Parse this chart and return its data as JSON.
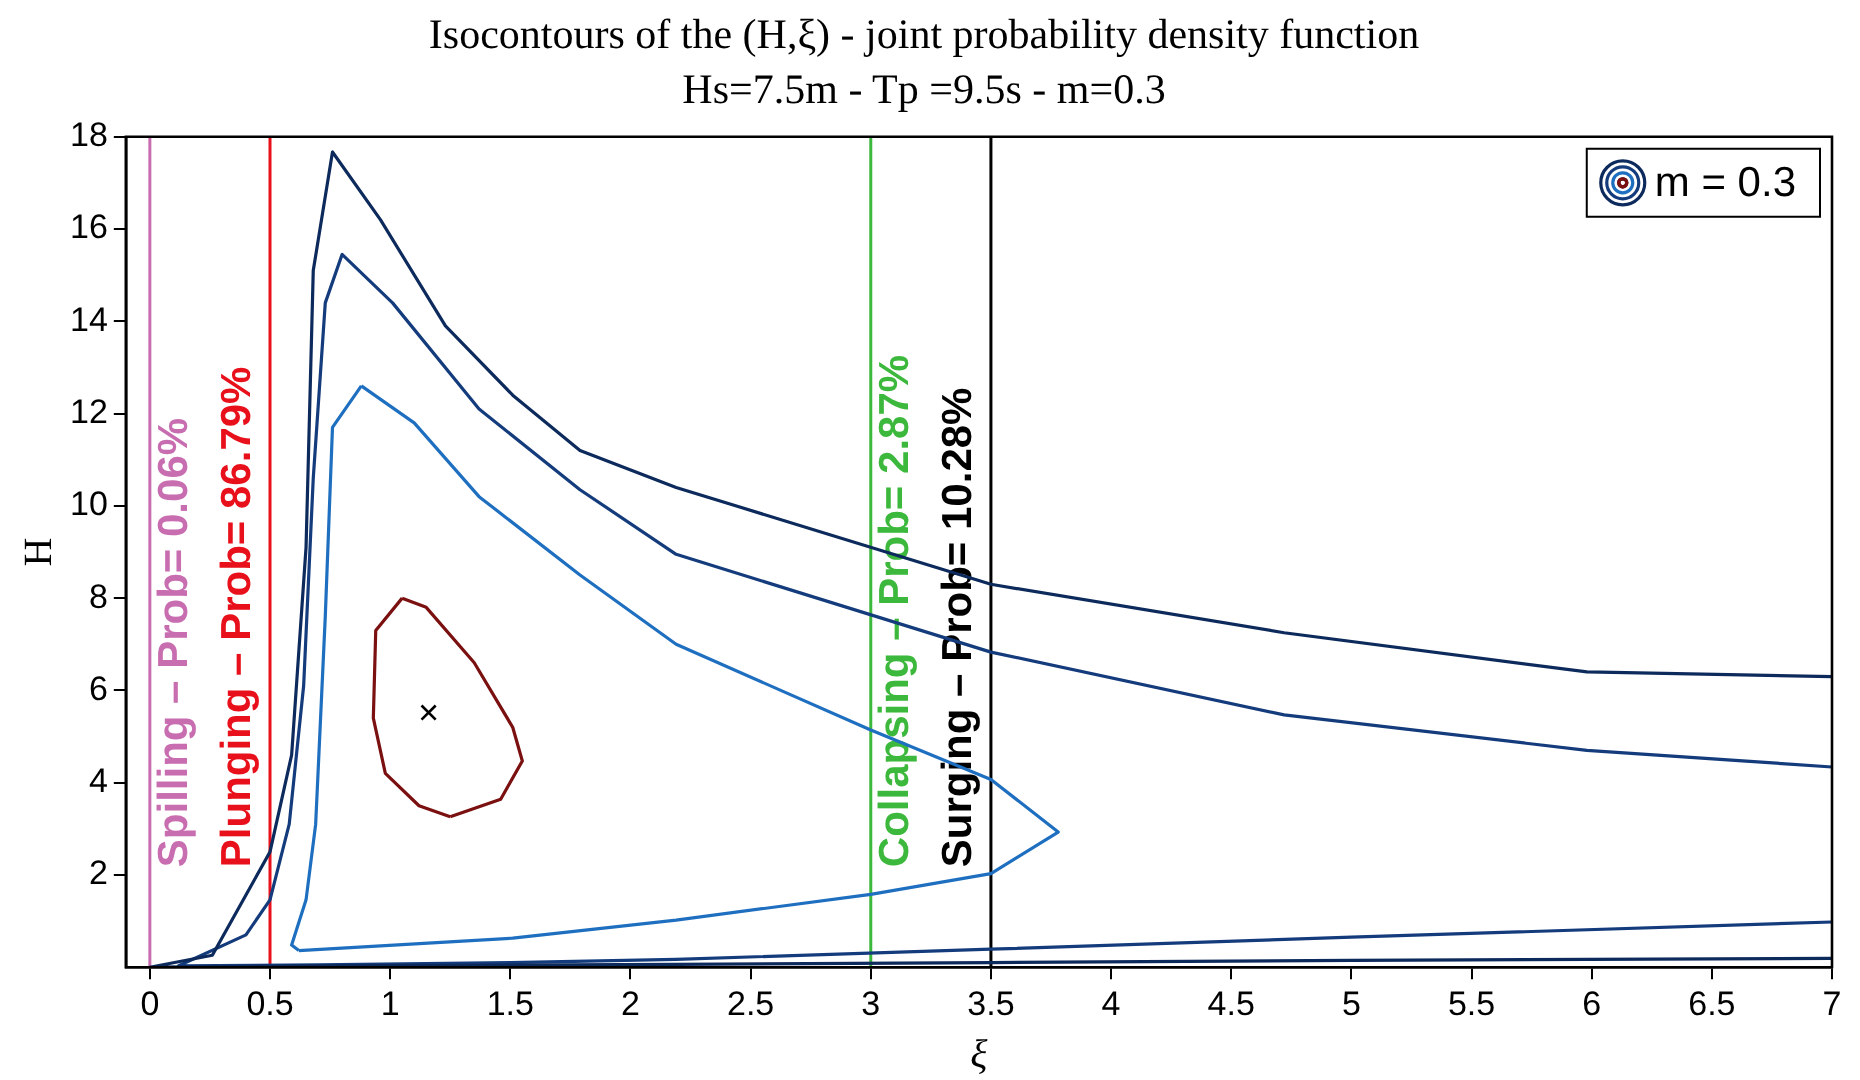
{
  "chart_data": {
    "type": "line",
    "title": "Isocontours of the (H,ξ) - joint probability density function",
    "subtitle": "Hs=7.5m - Tp =9.5s - m=0.3",
    "xlabel": "ξ",
    "ylabel": "H",
    "xlim": [
      -0.1,
      7
    ],
    "xticks": [
      0,
      0.5,
      1,
      1.5,
      2,
      2.5,
      3,
      3.5,
      4,
      4.5,
      5,
      5.5,
      6,
      6.5,
      7
    ],
    "ylim": [
      0,
      18
    ],
    "yticks": [
      2,
      4,
      6,
      8,
      10,
      12,
      14,
      16,
      18
    ],
    "grid": false,
    "legend": "top right",
    "marker": "none",
    "line_style": "solid",
    "series": [
      {
        "name": "m = 0.3",
        "color": "#0d2a5c",
        "x": [
          7,
          5.98,
          4.72,
          3.5,
          2.19,
          1.79,
          1.51,
          1.23,
          0.96,
          0.76,
          0.68,
          0.65,
          0.59,
          0.5,
          0.26,
          0,
          0.68,
          2.19,
          3.5,
          5,
          7
        ],
        "values": [
          6.3,
          6.4,
          7.25,
          8.3,
          10.4,
          11.2,
          12.4,
          13.9,
          16.2,
          17.67,
          15.1,
          9.1,
          4.6,
          2.5,
          0.26,
          0,
          0.03,
          0.06,
          0.1,
          0.15,
          0.19
        ]
      },
      {
        "color": "#143c7c",
        "x": [
          7,
          5.98,
          4.72,
          3.5,
          2.19,
          1.79,
          1.37,
          1.01,
          0.8,
          0.73,
          0.68,
          0.64,
          0.58,
          0.5,
          0.4,
          0.12,
          0.7,
          1.5,
          2.19,
          3.5,
          5,
          7
        ],
        "values": [
          4.34,
          4.7,
          5.47,
          6.83,
          8.95,
          10.35,
          12.1,
          14.4,
          15.45,
          14.4,
          10.6,
          6.1,
          3.1,
          1.46,
          0.7,
          0.03,
          0.05,
          0.1,
          0.17,
          0.39,
          0.65,
          0.98
        ]
      },
      {
        "color": "#1f6fc0",
        "x": [
          0.88,
          1.1,
          1.37,
          1.79,
          2.19,
          3,
          3.5,
          3.78,
          3.5,
          3,
          2.19,
          1.51,
          0.62
        ],
        "values": [
          12.6,
          11.8,
          10.2,
          8.5,
          7,
          5.14,
          4.07,
          2.93,
          2.03,
          1.58,
          1.02,
          0.63,
          0.36
        ]
      },
      {
        "color": "#1f6fc0",
        "x": [
          0.62,
          0.59,
          0.65,
          0.69,
          0.73,
          0.76,
          0.88
        ],
        "values": [
          0.36,
          0.48,
          1.46,
          3.1,
          7.6,
          11.7,
          12.6
        ]
      },
      {
        "color": "#7b1010",
        "x": [
          1.05,
          0.94,
          0.93,
          0.98,
          1.12,
          1.25
        ],
        "values": [
          8,
          7.3,
          5.4,
          4.2,
          3.5,
          3.26
        ]
      },
      {
        "color": "#7b1010",
        "x": [
          1.25,
          1.46,
          1.55,
          1.51,
          1.35,
          1.15,
          1.05
        ],
        "values": [
          3.26,
          3.64,
          4.47,
          5.2,
          6.6,
          7.8,
          8
        ]
      },
      {
        "type": "scatter",
        "marker": "cross",
        "color": "#000000",
        "x": [
          1.16
        ],
        "values": [
          5.52
        ]
      }
    ],
    "ref_lines": [
      {
        "axis": "x",
        "value": 0,
        "color": "#c86eb0"
      },
      {
        "axis": "x",
        "value": 0.5,
        "color": "#e8101a"
      },
      {
        "axis": "x",
        "value": 3,
        "color": "#3cb83c"
      },
      {
        "axis": "x",
        "value": 3.5,
        "color": "#000000"
      }
    ],
    "annotations": [
      "Spilling – Prob= 0.06%",
      "Plunging – Prob= 86.79%",
      "Collapsing – Prob= 2.87%",
      "Surging – Prob= 10.28%"
    ]
  }
}
